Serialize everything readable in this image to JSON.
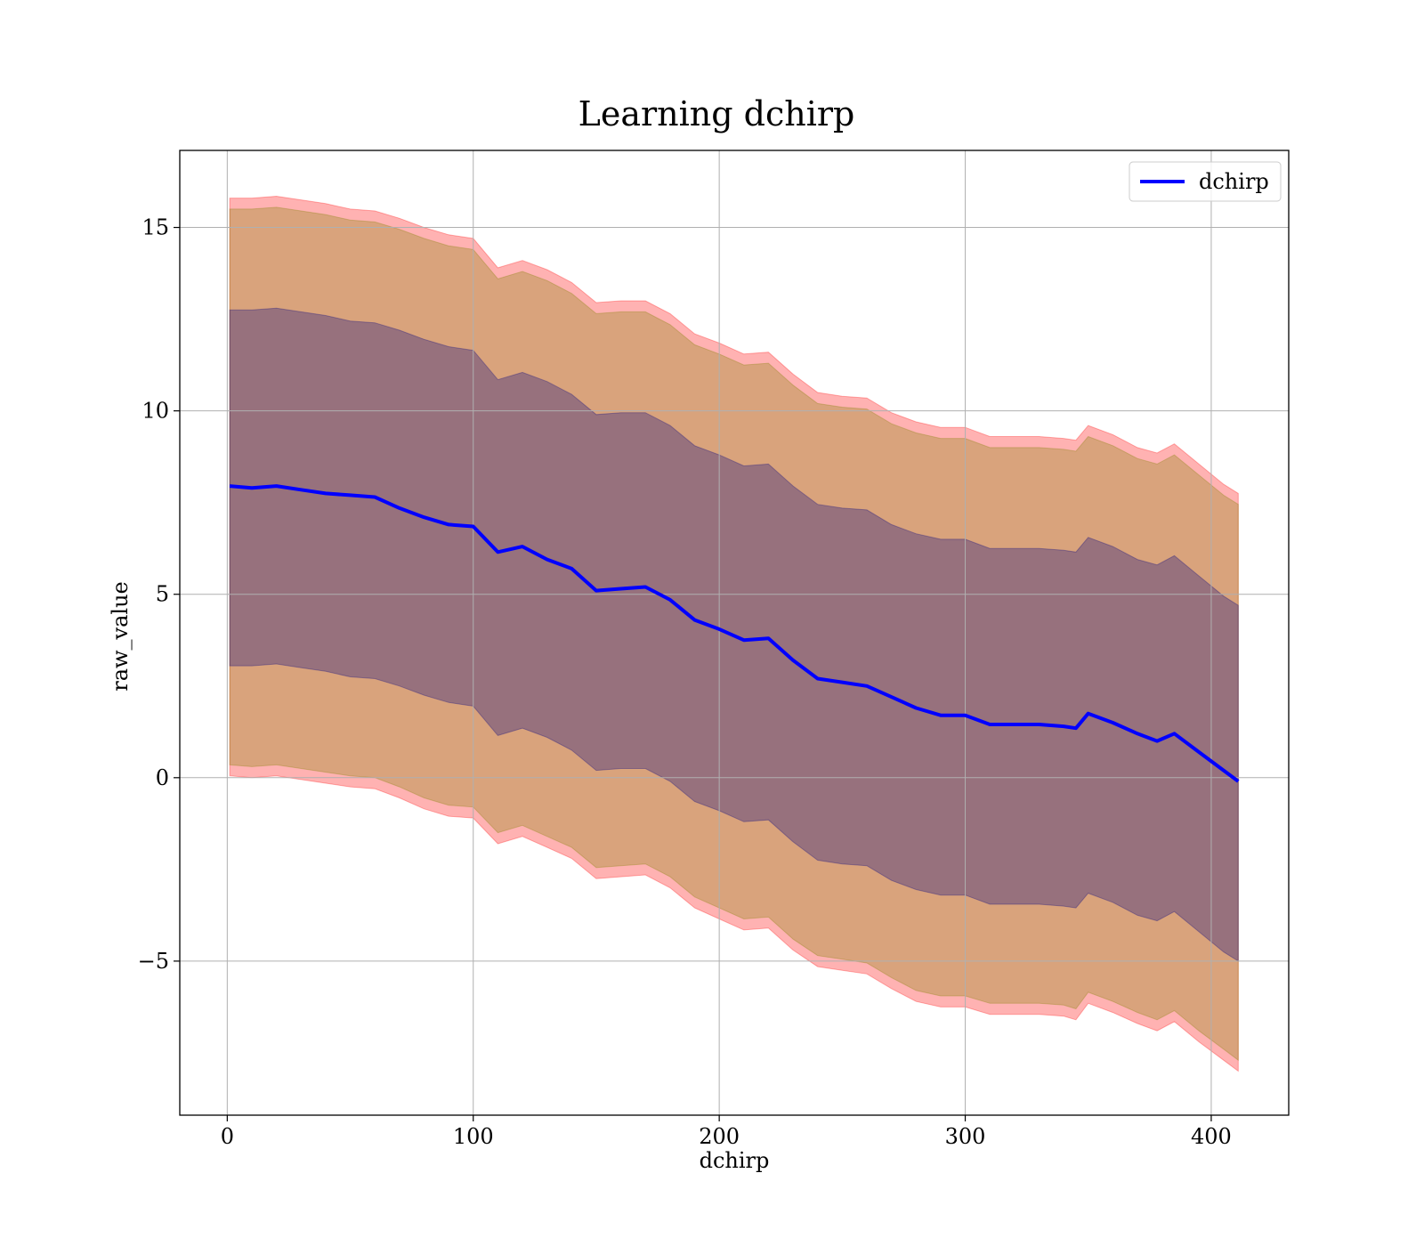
{
  "chart_data": {
    "type": "line",
    "title": "Learning dchirp",
    "xlabel": "dchirp",
    "ylabel": "raw_value",
    "xlim": [
      -19.3,
      431.5
    ],
    "ylim": [
      -9.2,
      17.1
    ],
    "xticks": [
      0,
      100,
      200,
      300,
      400
    ],
    "xtick_labels": [
      "0",
      "100",
      "200",
      "300",
      "400"
    ],
    "yticks": [
      -5,
      0,
      5,
      10,
      15
    ],
    "ytick_labels": [
      "−5",
      "0",
      "5",
      "10",
      "15"
    ],
    "grid": true,
    "legend_position": "top-right",
    "series": [
      {
        "name": "dchirp",
        "color": "#0000ff",
        "x": [
          1,
          10,
          20,
          30,
          40,
          50,
          60,
          70,
          80,
          90,
          100,
          110,
          120,
          130,
          140,
          150,
          160,
          170,
          180,
          190,
          200,
          210,
          220,
          230,
          240,
          250,
          260,
          270,
          280,
          290,
          300,
          310,
          320,
          330,
          340,
          345,
          350,
          360,
          370,
          378,
          385,
          395,
          405,
          411
        ],
        "values": [
          7.95,
          7.9,
          7.95,
          7.85,
          7.75,
          7.7,
          7.65,
          7.35,
          7.1,
          6.9,
          6.85,
          6.15,
          6.3,
          5.95,
          5.7,
          5.1,
          5.15,
          5.2,
          4.85,
          4.3,
          4.05,
          3.75,
          3.8,
          3.2,
          2.7,
          2.6,
          2.5,
          2.2,
          1.9,
          1.7,
          1.7,
          1.45,
          1.45,
          1.45,
          1.4,
          1.35,
          1.75,
          1.5,
          1.2,
          1.0,
          1.2,
          0.7,
          0.2,
          -0.1
        ]
      }
    ],
    "bands": [
      {
        "color": "#ff0000",
        "opacity": 0.3,
        "upper": [
          15.8,
          15.8,
          15.85,
          15.75,
          15.65,
          15.5,
          15.45,
          15.25,
          15.0,
          14.8,
          14.7,
          13.9,
          14.1,
          13.85,
          13.5,
          12.95,
          13.0,
          13.0,
          12.65,
          12.1,
          11.85,
          11.55,
          11.6,
          11.0,
          10.5,
          10.4,
          10.35,
          9.95,
          9.7,
          9.55,
          9.55,
          9.3,
          9.3,
          9.3,
          9.25,
          9.2,
          9.6,
          9.35,
          9.0,
          8.85,
          9.1,
          8.55,
          8.0,
          7.75
        ],
        "lower": [
          0.05,
          0.0,
          0.05,
          -0.05,
          -0.15,
          -0.25,
          -0.3,
          -0.55,
          -0.85,
          -1.05,
          -1.1,
          -1.8,
          -1.6,
          -1.9,
          -2.2,
          -2.75,
          -2.7,
          -2.65,
          -3.0,
          -3.55,
          -3.85,
          -4.15,
          -4.1,
          -4.7,
          -5.15,
          -5.25,
          -5.35,
          -5.75,
          -6.1,
          -6.25,
          -6.25,
          -6.45,
          -6.45,
          -6.45,
          -6.5,
          -6.6,
          -6.15,
          -6.4,
          -6.7,
          -6.9,
          -6.65,
          -7.2,
          -7.7,
          -8.0
        ]
      },
      {
        "color": "#808000",
        "opacity": 0.3,
        "upper": [
          15.5,
          15.5,
          15.55,
          15.45,
          15.35,
          15.2,
          15.15,
          14.95,
          14.7,
          14.5,
          14.4,
          13.6,
          13.8,
          13.55,
          13.2,
          12.65,
          12.7,
          12.7,
          12.35,
          11.8,
          11.55,
          11.25,
          11.3,
          10.7,
          10.2,
          10.1,
          10.05,
          9.65,
          9.4,
          9.25,
          9.25,
          9.0,
          9.0,
          9.0,
          8.95,
          8.9,
          9.3,
          9.05,
          8.7,
          8.55,
          8.8,
          8.25,
          7.7,
          7.45
        ],
        "lower": [
          0.35,
          0.3,
          0.35,
          0.25,
          0.15,
          0.05,
          0.0,
          -0.25,
          -0.55,
          -0.75,
          -0.8,
          -1.5,
          -1.3,
          -1.6,
          -1.9,
          -2.45,
          -2.4,
          -2.35,
          -2.7,
          -3.25,
          -3.55,
          -3.85,
          -3.8,
          -4.4,
          -4.85,
          -4.95,
          -5.05,
          -5.45,
          -5.8,
          -5.95,
          -5.95,
          -6.15,
          -6.15,
          -6.15,
          -6.2,
          -6.3,
          -5.85,
          -6.1,
          -6.4,
          -6.6,
          -6.35,
          -6.9,
          -7.4,
          -7.7
        ]
      },
      {
        "color": "#000080",
        "opacity": 0.3,
        "upper": [
          12.75,
          12.75,
          12.8,
          12.7,
          12.6,
          12.45,
          12.4,
          12.2,
          11.95,
          11.75,
          11.65,
          10.85,
          11.05,
          10.8,
          10.45,
          9.9,
          9.95,
          9.95,
          9.6,
          9.05,
          8.8,
          8.5,
          8.55,
          7.95,
          7.45,
          7.35,
          7.3,
          6.9,
          6.65,
          6.5,
          6.5,
          6.25,
          6.25,
          6.25,
          6.2,
          6.15,
          6.55,
          6.3,
          5.95,
          5.8,
          6.05,
          5.5,
          4.95,
          4.7
        ],
        "lower": [
          3.05,
          3.05,
          3.1,
          3.0,
          2.9,
          2.75,
          2.7,
          2.5,
          2.25,
          2.05,
          1.95,
          1.15,
          1.35,
          1.1,
          0.75,
          0.2,
          0.25,
          0.25,
          -0.1,
          -0.65,
          -0.9,
          -1.2,
          -1.15,
          -1.75,
          -2.25,
          -2.35,
          -2.4,
          -2.8,
          -3.05,
          -3.2,
          -3.2,
          -3.45,
          -3.45,
          -3.45,
          -3.5,
          -3.55,
          -3.15,
          -3.4,
          -3.75,
          -3.9,
          -3.65,
          -4.2,
          -4.75,
          -5.0
        ]
      }
    ]
  }
}
